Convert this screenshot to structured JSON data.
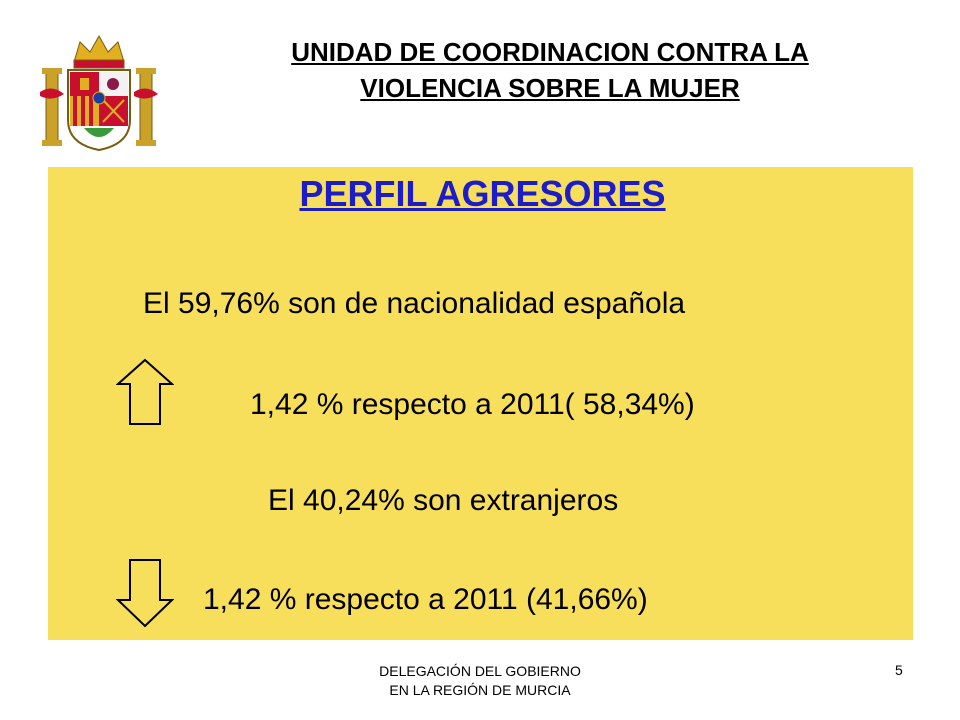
{
  "header": {
    "line1": "UNIDAD DE COORDINACION CONTRA LA",
    "line2": "VIOLENCIA SOBRE LA MUJER"
  },
  "slide": {
    "title": "PERFIL AGRESORES",
    "line1": "El 59,76% son de nacionalidad española",
    "line2": "1,42 % respecto a 2011( 58,34%)",
    "line3": "El 40,24% son extranjeros",
    "line4": "1,42 % respecto a 2011 (41,66%)",
    "up_arrow_icon": "arrow-up-icon",
    "down_arrow_icon": "arrow-down-icon"
  },
  "footer": {
    "line1": "DELEGACIÓN DEL GOBIERNO",
    "line2": "EN LA REGIÓN DE MURCIA",
    "page_number": "5"
  },
  "colors": {
    "panel": "#f7df5c",
    "title": "#1c1cc8"
  }
}
